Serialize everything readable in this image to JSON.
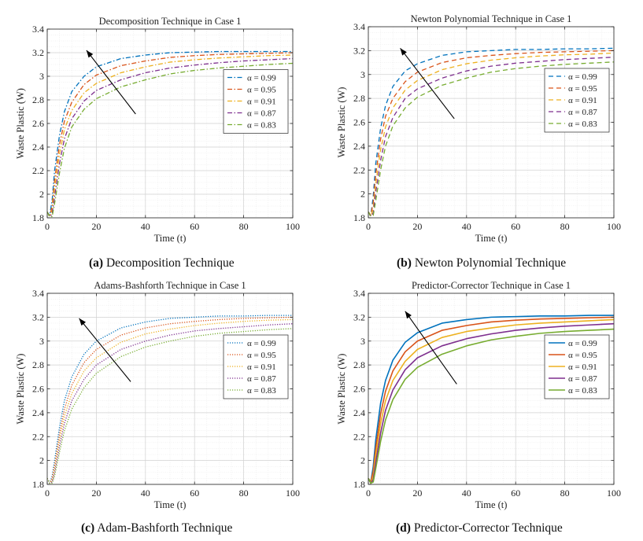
{
  "figure": {
    "captions": [
      {
        "tag": "(a)",
        "text": "Decomposition Technique"
      },
      {
        "tag": "(b)",
        "text": "Newton Polynomial Technique"
      },
      {
        "tag": "(c)",
        "text": "Adam-Bashforth Technique"
      },
      {
        "tag": "(d)",
        "text": "Predictor-Corrector Technique"
      }
    ]
  },
  "series_colors": [
    "#0072BD",
    "#D95319",
    "#EDB120",
    "#7E2F8E",
    "#77AC30"
  ],
  "chart_data": [
    {
      "type": "line",
      "title": "Decomposition Technique in Case 1",
      "xlabel": "Time (t)",
      "ylabel": "Waste Plastic (W)",
      "line_style": "dashdot",
      "xlim": [
        0,
        100
      ],
      "ylim": [
        1.8,
        3.4
      ],
      "xticks": [
        "0",
        "20",
        "40",
        "60",
        "80",
        "100"
      ],
      "yticks": [
        "1.8",
        "2",
        "2.2",
        "2.4",
        "2.6",
        "2.8",
        "3",
        "3.2",
        "3.4"
      ],
      "grid": true,
      "legend_position": "center-right",
      "arrow": {
        "from": [
          36,
          2.68
        ],
        "to": [
          16,
          3.22
        ]
      },
      "x": [
        0,
        1,
        2,
        3,
        5,
        7,
        10,
        15,
        20,
        30,
        40,
        50,
        60,
        70,
        80,
        90,
        100
      ],
      "series": [
        {
          "name": "α = 0.99",
          "values": [
            1.85,
            1.82,
            1.95,
            2.2,
            2.5,
            2.7,
            2.87,
            3.0,
            3.08,
            3.15,
            3.18,
            3.2,
            3.205,
            3.21,
            3.21,
            3.21,
            3.21
          ]
        },
        {
          "name": "α = 0.95",
          "values": [
            1.85,
            1.81,
            1.9,
            2.12,
            2.42,
            2.62,
            2.78,
            2.93,
            3.01,
            3.09,
            3.13,
            3.16,
            3.175,
            3.185,
            3.19,
            3.195,
            3.2
          ]
        },
        {
          "name": "α = 0.91",
          "values": [
            1.85,
            1.81,
            1.86,
            2.05,
            2.34,
            2.55,
            2.71,
            2.86,
            2.94,
            3.03,
            3.08,
            3.12,
            3.14,
            3.155,
            3.165,
            3.175,
            3.18
          ]
        },
        {
          "name": "α = 0.87",
          "values": [
            1.85,
            1.81,
            1.83,
            1.98,
            2.26,
            2.47,
            2.64,
            2.79,
            2.88,
            2.97,
            3.03,
            3.07,
            3.095,
            3.115,
            3.13,
            3.14,
            3.15
          ]
        },
        {
          "name": "α = 0.83",
          "values": [
            1.85,
            1.81,
            1.81,
            1.92,
            2.18,
            2.39,
            2.57,
            2.72,
            2.81,
            2.91,
            2.97,
            3.02,
            3.05,
            3.07,
            3.085,
            3.1,
            3.11
          ]
        }
      ]
    },
    {
      "type": "line",
      "title": "Newton Polynomial Technique in Case 1",
      "xlabel": "Time (t)",
      "ylabel": "Waste Plastic (W)",
      "line_style": "dashed",
      "xlim": [
        0,
        100
      ],
      "ylim": [
        1.8,
        3.4
      ],
      "xticks": [
        "0",
        "20",
        "40",
        "60",
        "80",
        "100"
      ],
      "yticks": [
        "1.8",
        "2",
        "2.2",
        "2.4",
        "2.6",
        "2.8",
        "3",
        "3.2",
        "3.4"
      ],
      "grid": true,
      "legend_position": "center-right",
      "arrow": {
        "from": [
          35,
          2.63
        ],
        "to": [
          13,
          3.22
        ]
      },
      "x": [
        0,
        1,
        2,
        3,
        5,
        7,
        10,
        15,
        20,
        30,
        40,
        50,
        60,
        70,
        80,
        90,
        100
      ],
      "series": [
        {
          "name": "α = 0.99",
          "values": [
            1.85,
            1.82,
            1.98,
            2.25,
            2.55,
            2.74,
            2.9,
            3.03,
            3.09,
            3.16,
            3.19,
            3.2,
            3.21,
            3.21,
            3.215,
            3.215,
            3.22
          ]
        },
        {
          "name": "α = 0.95",
          "values": [
            1.85,
            1.82,
            1.93,
            2.16,
            2.46,
            2.65,
            2.8,
            2.94,
            3.02,
            3.1,
            3.14,
            3.16,
            3.175,
            3.185,
            3.19,
            3.195,
            3.2
          ]
        },
        {
          "name": "α = 0.91",
          "values": [
            1.85,
            1.81,
            1.88,
            2.08,
            2.37,
            2.56,
            2.72,
            2.87,
            2.95,
            3.04,
            3.09,
            3.12,
            3.14,
            3.155,
            3.165,
            3.17,
            3.18
          ]
        },
        {
          "name": "α = 0.87",
          "values": [
            1.85,
            1.81,
            1.84,
            2.01,
            2.28,
            2.48,
            2.64,
            2.8,
            2.88,
            2.97,
            3.03,
            3.07,
            3.095,
            3.11,
            3.125,
            3.135,
            3.145
          ]
        },
        {
          "name": "α = 0.83",
          "values": [
            1.85,
            1.81,
            1.82,
            1.94,
            2.2,
            2.4,
            2.57,
            2.72,
            2.81,
            2.91,
            2.97,
            3.02,
            3.05,
            3.07,
            3.085,
            3.095,
            3.105
          ]
        }
      ]
    },
    {
      "type": "line",
      "title": "Adams-Bashforth Technique in Case 1",
      "xlabel": "Time (t)",
      "ylabel": "Waste Plastic (W)",
      "line_style": "dotted",
      "xlim": [
        0,
        100
      ],
      "ylim": [
        1.8,
        3.4
      ],
      "xticks": [
        "0",
        "20",
        "40",
        "60",
        "80",
        "100"
      ],
      "yticks": [
        "1.8",
        "2",
        "2.2",
        "2.4",
        "2.6",
        "2.8",
        "3",
        "3.2",
        "3.4"
      ],
      "grid": true,
      "legend_position": "center-right",
      "arrow": {
        "from": [
          34,
          2.66
        ],
        "to": [
          13,
          3.19
        ]
      },
      "x": [
        0,
        1,
        2,
        3,
        5,
        7,
        10,
        15,
        20,
        30,
        40,
        50,
        60,
        70,
        80,
        90,
        100
      ],
      "series": [
        {
          "name": "α = 0.99",
          "values": [
            1.85,
            1.81,
            1.87,
            2.0,
            2.28,
            2.5,
            2.7,
            2.89,
            3.0,
            3.11,
            3.16,
            3.19,
            3.2,
            3.21,
            3.21,
            3.215,
            3.215
          ]
        },
        {
          "name": "α = 0.95",
          "values": [
            1.85,
            1.81,
            1.85,
            1.96,
            2.22,
            2.43,
            2.63,
            2.82,
            2.93,
            3.05,
            3.11,
            3.145,
            3.165,
            3.18,
            3.19,
            3.195,
            3.2
          ]
        },
        {
          "name": "α = 0.91",
          "values": [
            1.85,
            1.81,
            1.83,
            1.93,
            2.17,
            2.37,
            2.56,
            2.75,
            2.86,
            2.99,
            3.06,
            3.1,
            3.13,
            3.15,
            3.165,
            3.175,
            3.18
          ]
        },
        {
          "name": "α = 0.87",
          "values": [
            1.85,
            1.81,
            1.82,
            1.9,
            2.12,
            2.31,
            2.5,
            2.68,
            2.8,
            2.93,
            3.0,
            3.05,
            3.085,
            3.105,
            3.12,
            3.135,
            3.145
          ]
        },
        {
          "name": "α = 0.83",
          "values": [
            1.85,
            1.81,
            1.81,
            1.87,
            2.07,
            2.25,
            2.43,
            2.61,
            2.73,
            2.87,
            2.95,
            3.0,
            3.04,
            3.065,
            3.08,
            3.095,
            3.105
          ]
        }
      ]
    },
    {
      "type": "line",
      "title": "Predictor-Corrector Technique in Case 1",
      "xlabel": "Time (t)",
      "ylabel": "Waste Plastic (W)",
      "line_style": "solid",
      "xlim": [
        0,
        100
      ],
      "ylim": [
        1.8,
        3.4
      ],
      "xticks": [
        "0",
        "20",
        "40",
        "60",
        "80",
        "100"
      ],
      "yticks": [
        "1.8",
        "2",
        "2.2",
        "2.4",
        "2.6",
        "2.8",
        "3",
        "3.2",
        "3.4"
      ],
      "grid": true,
      "legend_position": "center-right",
      "arrow": {
        "from": [
          36,
          2.64
        ],
        "to": [
          15,
          3.25
        ]
      },
      "x": [
        0,
        1,
        2,
        3,
        5,
        7,
        10,
        15,
        20,
        30,
        40,
        50,
        60,
        70,
        80,
        90,
        100
      ],
      "series": [
        {
          "name": "α = 0.99",
          "values": [
            1.85,
            1.82,
            1.95,
            2.17,
            2.48,
            2.67,
            2.84,
            2.99,
            3.07,
            3.15,
            3.18,
            3.2,
            3.205,
            3.21,
            3.21,
            3.215,
            3.215
          ]
        },
        {
          "name": "α = 0.95",
          "values": [
            1.85,
            1.82,
            1.91,
            2.1,
            2.39,
            2.58,
            2.75,
            2.91,
            3.0,
            3.09,
            3.13,
            3.16,
            3.175,
            3.185,
            3.19,
            3.195,
            3.2
          ]
        },
        {
          "name": "α = 0.91",
          "values": [
            1.85,
            1.81,
            1.87,
            2.04,
            2.31,
            2.5,
            2.67,
            2.83,
            2.93,
            3.03,
            3.08,
            3.11,
            3.135,
            3.15,
            3.16,
            3.17,
            3.18
          ]
        },
        {
          "name": "α = 0.87",
          "values": [
            1.85,
            1.81,
            1.84,
            1.98,
            2.23,
            2.42,
            2.59,
            2.76,
            2.86,
            2.96,
            3.02,
            3.06,
            3.09,
            3.11,
            3.125,
            3.135,
            3.145
          ]
        },
        {
          "name": "α = 0.83",
          "values": [
            1.85,
            1.81,
            1.82,
            1.93,
            2.16,
            2.34,
            2.51,
            2.68,
            2.78,
            2.89,
            2.96,
            3.01,
            3.04,
            3.065,
            3.08,
            3.09,
            3.1
          ]
        }
      ]
    }
  ]
}
